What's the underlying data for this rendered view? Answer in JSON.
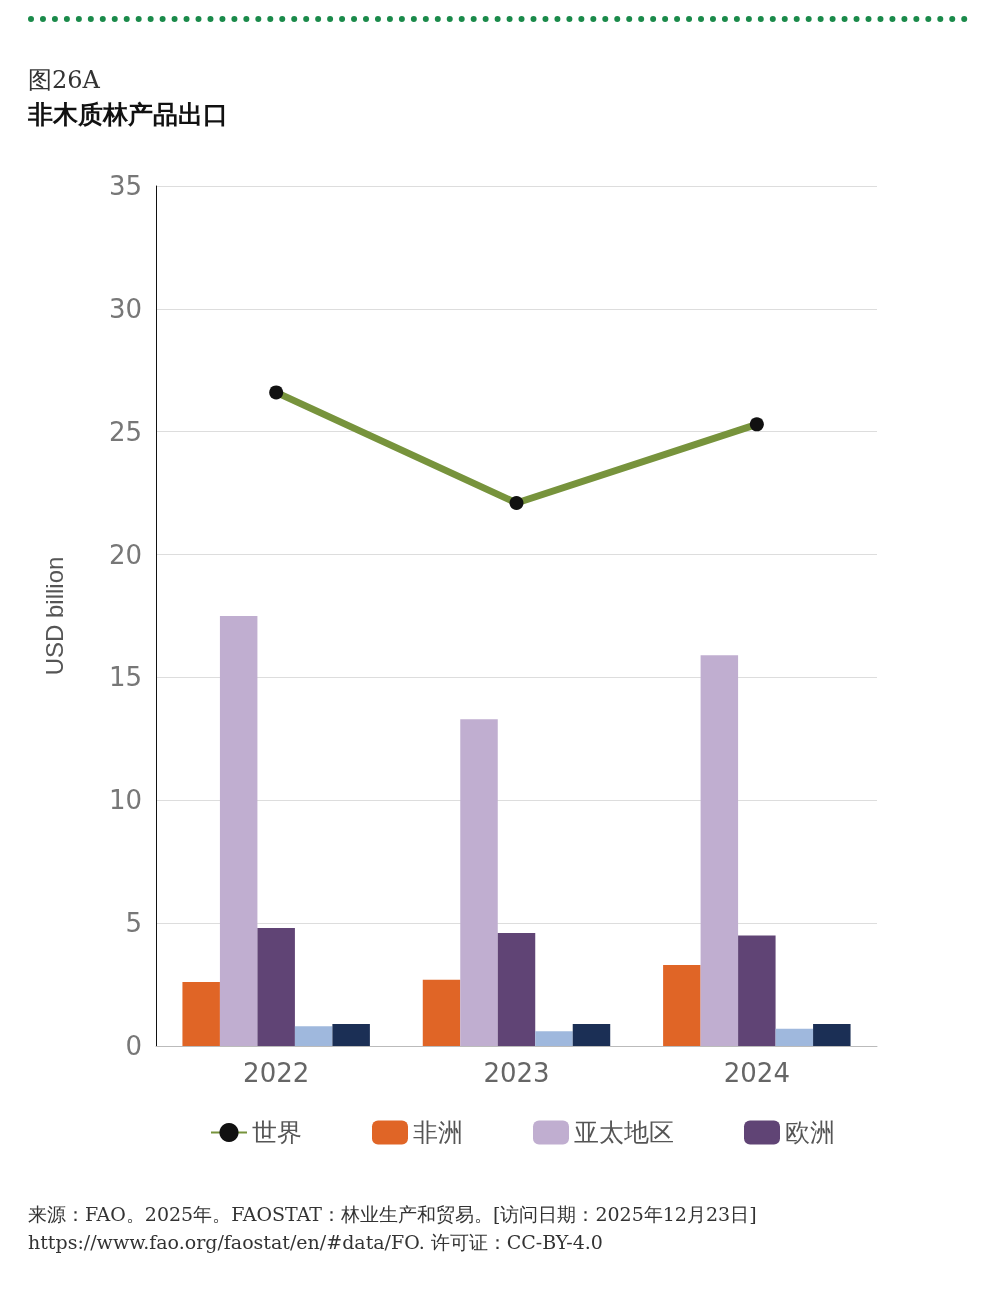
{
  "chart_data": {
    "type": "bar",
    "subtitle": "图26A",
    "title": "非木质林产品出口",
    "ylabel": "USD billion",
    "categories": [
      "2022",
      "2023",
      "2024"
    ],
    "series": [
      {
        "name": "世界",
        "type": "line",
        "color": "#77933c",
        "values": [
          26.6,
          22.1,
          25.3
        ]
      },
      {
        "name": "非洲",
        "color": "#e06526",
        "values": [
          2.6,
          2.7,
          3.3
        ]
      },
      {
        "name": "亚太地区",
        "color": "#c0aed0",
        "values": [
          17.5,
          13.3,
          15.9
        ]
      },
      {
        "name": "欧洲",
        "color": "#604475",
        "values": [
          4.8,
          4.6,
          4.5
        ]
      },
      {
        "color": "#9fb8dd",
        "values": [
          0.8,
          0.6,
          0.7
        ]
      },
      {
        "color": "#1b2f55",
        "values": [
          0.9,
          0.9,
          0.9
        ]
      }
    ],
    "ylim": [
      0,
      35
    ],
    "yticks": [
      0,
      5,
      10,
      15,
      20,
      25,
      30,
      35
    ],
    "grid": "y",
    "legend": "bottom",
    "marker": "circle",
    "annotations": [
      "来源：FAO。2025年。FAOSTAT：林业生产和贸易。[访问日期：2025年12月23日]",
      "https://www.fao.org/faostat/en/#data/FO. 许可证：CC-BY-4.0"
    ]
  }
}
